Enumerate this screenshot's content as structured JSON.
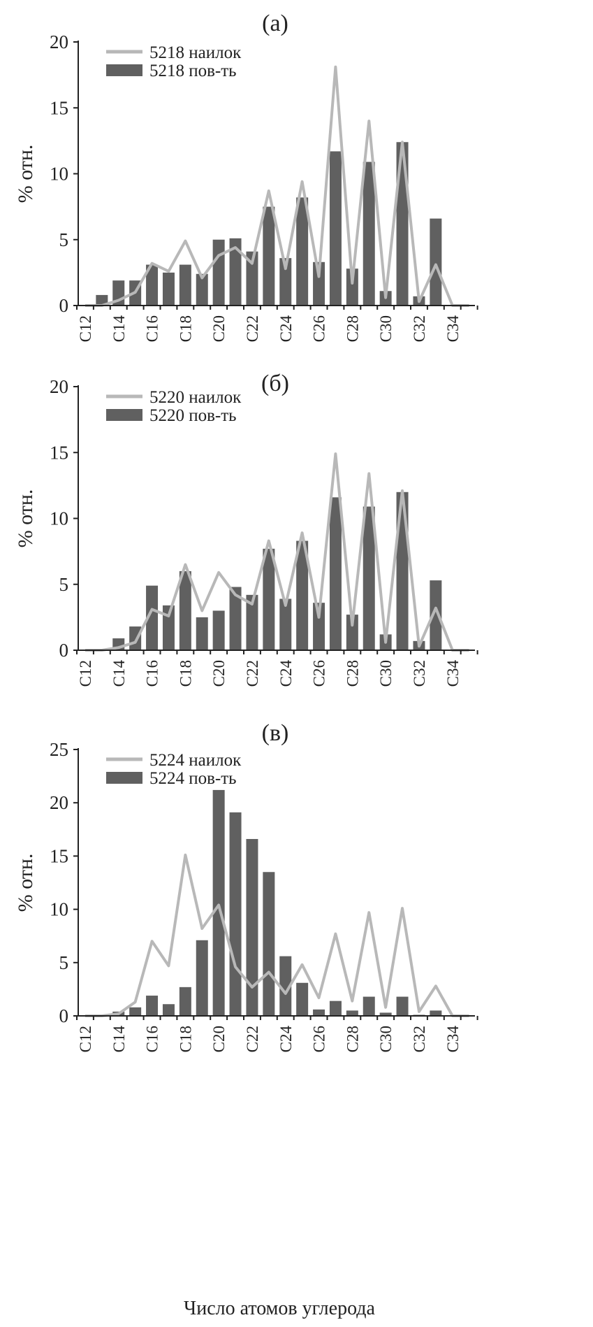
{
  "colors": {
    "bar": "#606060",
    "line": "#b8b8b8",
    "axis": "#222222"
  },
  "xlabel": "Число атомов углерода",
  "chart_data": [
    {
      "type": "bar",
      "panel_label": "(а)",
      "ylabel": "% отн.",
      "ylim": [
        0,
        20
      ],
      "yticks": [
        0,
        5,
        10,
        15,
        20
      ],
      "categories": [
        "C12",
        "C13",
        "C14",
        "C15",
        "C16",
        "C17",
        "C18",
        "C19",
        "C20",
        "C21",
        "C22",
        "C23",
        "C24",
        "C25",
        "C26",
        "C27",
        "C28",
        "C29",
        "C30",
        "C31",
        "C32",
        "C33",
        "C34",
        "C35"
      ],
      "tick_labels": [
        "C12",
        "C14",
        "C16",
        "C18",
        "C20",
        "C22",
        "C24",
        "C26",
        "C28",
        "C30",
        "C32",
        "C34"
      ],
      "legend_position": "top-left",
      "series": [
        {
          "name": "5218 наилок",
          "type": "line",
          "values": [
            0,
            0,
            0.4,
            1.0,
            3.2,
            2.6,
            4.9,
            2.1,
            3.8,
            4.4,
            3.2,
            8.7,
            2.8,
            9.4,
            2.2,
            18.1,
            1.7,
            14.0,
            0.6,
            12.4,
            0.3,
            3.1,
            0,
            0
          ]
        },
        {
          "name": "5218 пов-ть",
          "type": "bar",
          "values": [
            0,
            0.8,
            1.9,
            1.9,
            3.1,
            2.5,
            3.1,
            2.4,
            5.0,
            5.1,
            4.1,
            7.5,
            3.6,
            8.2,
            3.3,
            11.7,
            2.8,
            10.9,
            1.1,
            12.4,
            0.7,
            6.6,
            0,
            0
          ]
        }
      ]
    },
    {
      "type": "bar",
      "panel_label": "(б)",
      "ylabel": "% отн.",
      "ylim": [
        0,
        20
      ],
      "yticks": [
        0,
        5,
        10,
        15,
        20
      ],
      "categories": [
        "C12",
        "C13",
        "C14",
        "C15",
        "C16",
        "C17",
        "C18",
        "C19",
        "C20",
        "C21",
        "C22",
        "C23",
        "C24",
        "C25",
        "C26",
        "C27",
        "C28",
        "C29",
        "C30",
        "C31",
        "C32",
        "C33",
        "C34",
        "C35"
      ],
      "tick_labels": [
        "C12",
        "C14",
        "C16",
        "C18",
        "C20",
        "C22",
        "C24",
        "C26",
        "C28",
        "C30",
        "C32",
        "C34"
      ],
      "legend_position": "top-left",
      "series": [
        {
          "name": "5220 наилок",
          "type": "line",
          "values": [
            0,
            0,
            0.2,
            0.6,
            3.1,
            2.6,
            6.5,
            3.0,
            5.9,
            4.2,
            3.5,
            8.3,
            3.4,
            8.9,
            2.5,
            14.9,
            1.9,
            13.4,
            0.6,
            12.1,
            0.3,
            3.2,
            0,
            0
          ]
        },
        {
          "name": "5220 пов-ть",
          "type": "bar",
          "values": [
            0,
            0,
            0.9,
            1.8,
            4.9,
            3.4,
            6.0,
            2.5,
            3.0,
            4.8,
            4.2,
            7.7,
            3.9,
            8.3,
            3.6,
            11.6,
            2.7,
            10.9,
            1.2,
            12.0,
            0.7,
            5.3,
            0,
            0
          ]
        }
      ]
    },
    {
      "type": "bar",
      "panel_label": "(в)",
      "ylabel": "% отн.",
      "ylim": [
        0,
        25
      ],
      "yticks": [
        0,
        5,
        10,
        15,
        20,
        25
      ],
      "categories": [
        "C12",
        "C13",
        "C14",
        "C15",
        "C16",
        "C17",
        "C18",
        "C19",
        "C20",
        "C21",
        "C22",
        "C23",
        "C24",
        "C25",
        "C26",
        "C27",
        "C28",
        "C29",
        "C30",
        "C31",
        "C32",
        "C33",
        "C34",
        "C35"
      ],
      "tick_labels": [
        "C12",
        "C14",
        "C16",
        "C18",
        "C20",
        "C22",
        "C24",
        "C26",
        "C28",
        "C30",
        "C32",
        "C34"
      ],
      "legend_position": "top-left",
      "series": [
        {
          "name": "5224 наилок",
          "type": "line",
          "values": [
            0,
            0,
            0.2,
            1.3,
            7.0,
            4.7,
            15.1,
            8.2,
            10.4,
            4.6,
            2.7,
            4.1,
            2.1,
            4.8,
            1.7,
            7.7,
            1.4,
            9.7,
            0.8,
            10.1,
            0.4,
            2.8,
            0,
            0
          ]
        },
        {
          "name": "5224 пов-ть",
          "type": "bar",
          "values": [
            0,
            0,
            0.4,
            0.8,
            1.9,
            1.1,
            2.7,
            7.1,
            21.2,
            19.1,
            16.6,
            13.5,
            5.6,
            3.1,
            0.6,
            1.4,
            0.5,
            1.8,
            0.3,
            1.8,
            0.1,
            0.5,
            0,
            0
          ]
        }
      ]
    }
  ]
}
